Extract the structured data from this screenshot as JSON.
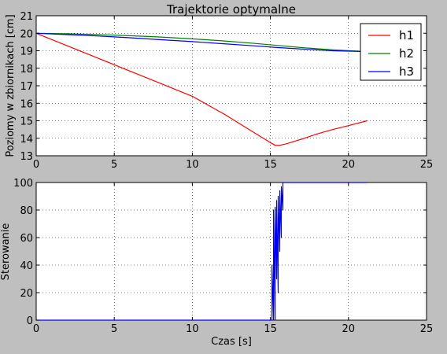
{
  "chart_data": [
    {
      "type": "line",
      "title": "Trajektorie optymalne",
      "xlabel": "",
      "ylabel": "Poziomy w zbiornikach [cm]",
      "xlim": [
        0,
        25
      ],
      "ylim": [
        13,
        21
      ],
      "xticks": [
        "0",
        "5",
        "10",
        "15",
        "20",
        "25"
      ],
      "yticks": [
        "13",
        "14",
        "15",
        "16",
        "17",
        "18",
        "19",
        "20",
        "21"
      ],
      "grid": true,
      "legend": "top-right",
      "series": [
        {
          "name": "h1",
          "color": "#ff0000",
          "x": [
            0,
            2,
            4,
            6,
            8,
            10,
            12,
            14,
            15,
            15.3,
            15.6,
            16,
            17,
            18,
            19,
            20,
            21.2
          ],
          "y": [
            20,
            19.28,
            18.56,
            17.84,
            17.12,
            16.4,
            15.4,
            14.3,
            13.75,
            13.6,
            13.6,
            13.68,
            13.95,
            14.25,
            14.5,
            14.72,
            15.0
          ]
        },
        {
          "name": "h2",
          "color": "#008000",
          "x": [
            0,
            2,
            4,
            6,
            8,
            10,
            12,
            14,
            15.5,
            17,
            19,
            21.2
          ],
          "y": [
            20,
            19.97,
            19.92,
            19.86,
            19.78,
            19.68,
            19.56,
            19.42,
            19.3,
            19.18,
            19.05,
            18.95
          ]
        },
        {
          "name": "h3",
          "color": "#0000ff",
          "x": [
            0,
            2,
            4,
            6,
            8,
            10,
            12,
            14,
            15.5,
            17,
            19,
            21.2
          ],
          "y": [
            20,
            19.92,
            19.84,
            19.74,
            19.63,
            19.52,
            19.4,
            19.28,
            19.18,
            19.1,
            19.0,
            18.95
          ]
        }
      ]
    },
    {
      "type": "line",
      "title": "",
      "xlabel": "Czas [s]",
      "ylabel": "Sterowanie",
      "xlim": [
        0,
        25
      ],
      "ylim": [
        0,
        100
      ],
      "xticks": [
        "0",
        "5",
        "10",
        "15",
        "20",
        "25"
      ],
      "yticks": [
        "0",
        "20",
        "40",
        "60",
        "80",
        "100"
      ],
      "grid": true,
      "series": [
        {
          "color": "#0000ff",
          "x": [
            0,
            15.1,
            15.1,
            15.2,
            15.2,
            15.3,
            15.3,
            15.4,
            15.4,
            15.5,
            15.5,
            15.6,
            15.6,
            15.7,
            15.7,
            15.8,
            15.8,
            15.9,
            21.2
          ],
          "y": [
            0,
            0,
            40,
            0,
            80,
            0,
            82,
            30,
            87,
            20,
            90,
            50,
            94,
            60,
            97,
            80,
            100,
            100,
            100
          ]
        }
      ]
    }
  ]
}
